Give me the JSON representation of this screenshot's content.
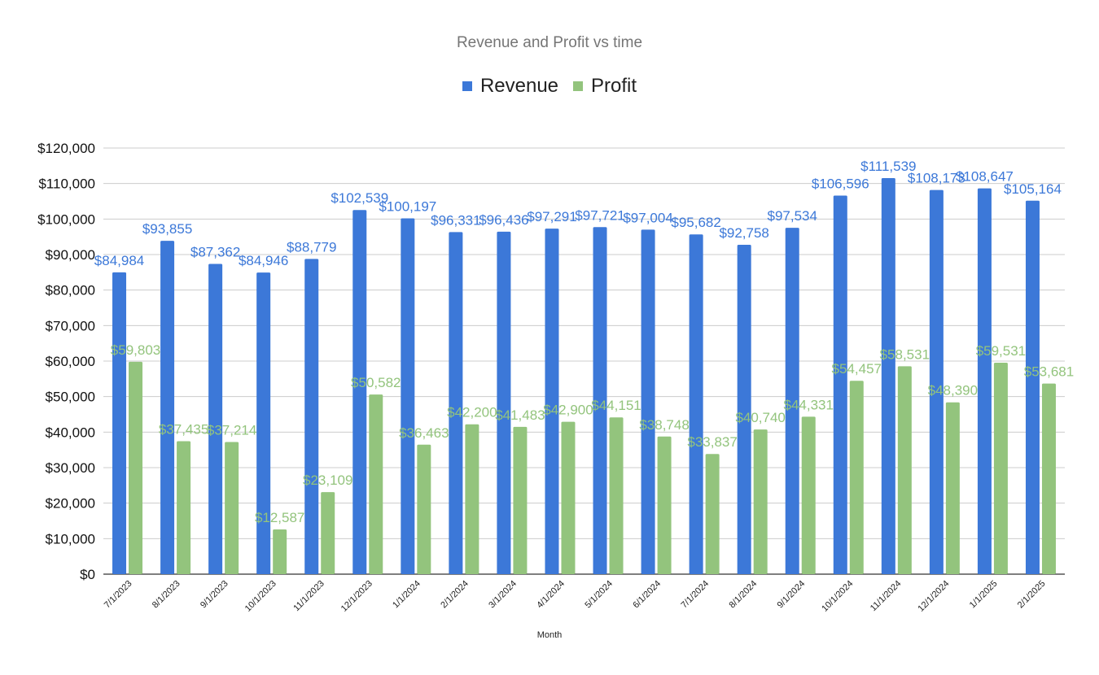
{
  "chart_data": {
    "type": "bar",
    "title": "Revenue and Profit vs time",
    "xlabel": "Month",
    "ylabel": "",
    "ylim": [
      0,
      120000
    ],
    "yticks": [
      0,
      10000,
      20000,
      30000,
      40000,
      50000,
      60000,
      70000,
      80000,
      90000,
      100000,
      110000,
      120000
    ],
    "ytick_labels": [
      "$0",
      "$10,000",
      "$20,000",
      "$30,000",
      "$40,000",
      "$50,000",
      "$60,000",
      "$70,000",
      "$80,000",
      "$90,000",
      "$100,000",
      "$110,000",
      "$120,000"
    ],
    "grid": true,
    "legend_position": "top-center",
    "categories": [
      "7/1/2023",
      "8/1/2023",
      "9/1/2023",
      "10/1/2023",
      "11/1/2023",
      "12/1/2023",
      "1/1/2024",
      "2/1/2024",
      "3/1/2024",
      "4/1/2024",
      "5/1/2024",
      "6/1/2024",
      "7/1/2024",
      "8/1/2024",
      "9/1/2024",
      "10/1/2024",
      "11/1/2024",
      "12/1/2024",
      "1/1/2025",
      "2/1/2025"
    ],
    "series": [
      {
        "name": "Revenue",
        "color": "#3c78d8",
        "values": [
          84984,
          93855,
          87362,
          84946,
          88779,
          102539,
          100197,
          96331,
          96436,
          97291,
          97721,
          97004,
          95682,
          92758,
          97534,
          106596,
          111539,
          108173,
          108647,
          105164
        ],
        "labels": [
          "$84,984",
          "$93,855",
          "$87,362",
          "$84,946",
          "$88,779",
          "$102,539",
          "$100,197",
          "$96,331",
          "$96,436",
          "$97,291",
          "$97,721",
          "$97,004",
          "$95,682",
          "$92,758",
          "$97,534",
          "$106,596",
          "$111,539",
          "$108,173",
          "$108,647",
          "$105,164"
        ]
      },
      {
        "name": "Profit",
        "color": "#93c47d",
        "values": [
          59803,
          37435,
          37214,
          12587,
          23109,
          50582,
          36463,
          42200,
          41483,
          42900,
          44151,
          38748,
          33837,
          40740,
          44331,
          54457,
          58531,
          48390,
          59531,
          53681
        ],
        "labels": [
          "$59,803",
          "$37,435",
          "$37,214",
          "$12,587",
          "$23,109",
          "$50,582",
          "$36,463",
          "$42,200",
          "$41,483",
          "$42,900",
          "$44,151",
          "$38,748",
          "$33,837",
          "$40,740",
          "$44,331",
          "$54,457",
          "$58,531",
          "$48,390",
          "$59,531",
          "$53,681"
        ]
      }
    ]
  }
}
